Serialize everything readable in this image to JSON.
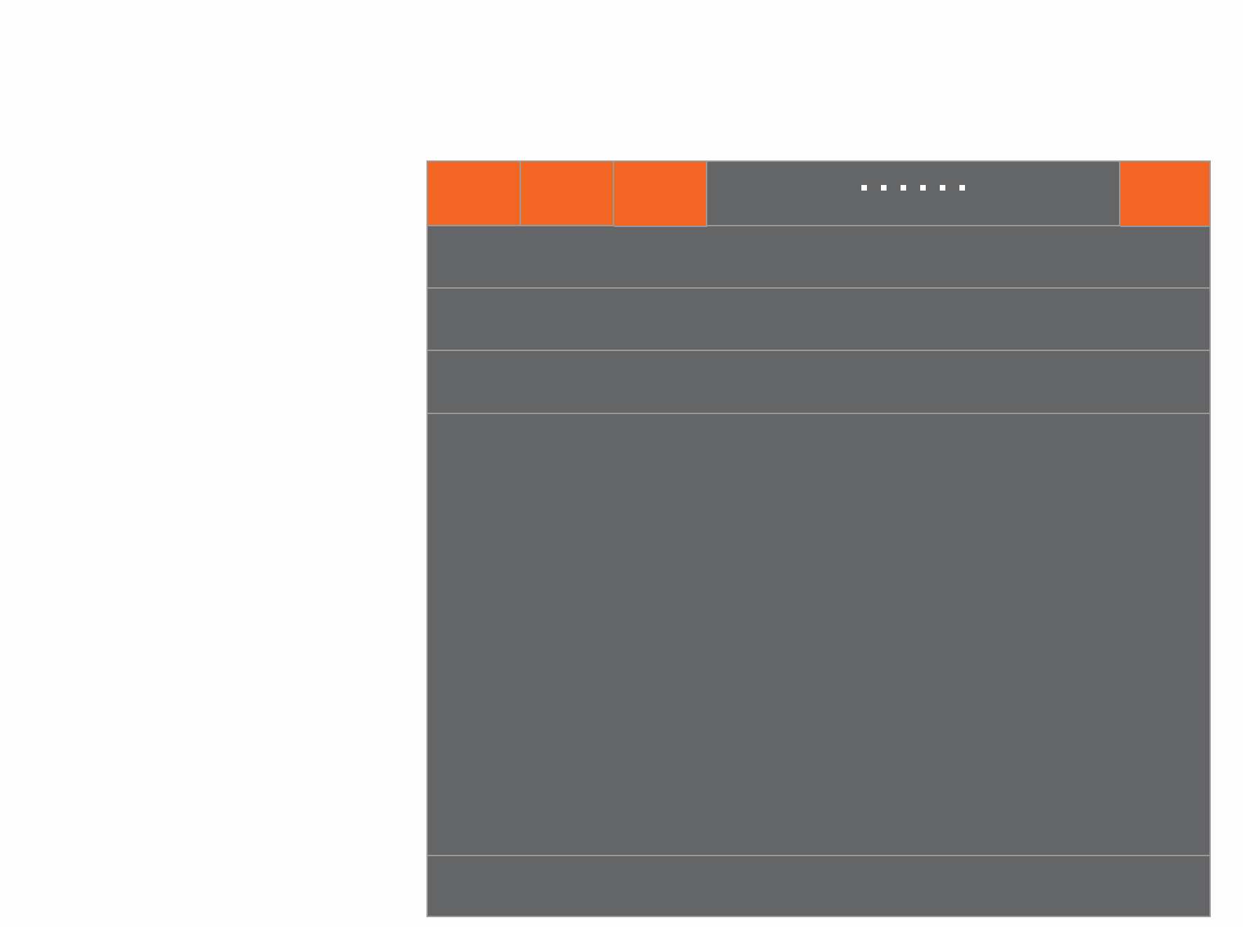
{
  "colors": {
    "accent": "#f26522",
    "panel": "#646567",
    "divider": "#9a9a9a",
    "background": "#fefefe",
    "dot": "#ffffff"
  },
  "header": {
    "cells": [
      "orange",
      "orange",
      "orange",
      "grey",
      "orange"
    ],
    "dot_count": 6
  },
  "bands": [
    "row-1",
    "row-2",
    "row-3",
    "content-area",
    "footer-row"
  ]
}
